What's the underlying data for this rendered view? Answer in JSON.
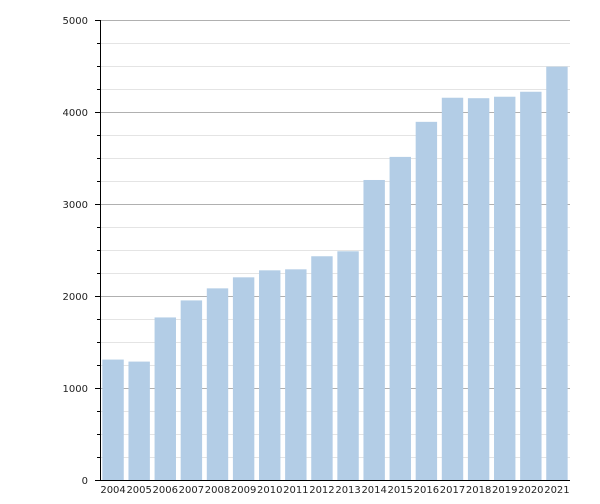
{
  "chart_data": {
    "type": "bar",
    "categories": [
      "2004",
      "2005",
      "2006",
      "2007",
      "2008",
      "2009",
      "2010",
      "2011",
      "2012",
      "2013",
      "2014",
      "2015",
      "2016",
      "2017",
      "2018",
      "2019",
      "2020",
      "2021"
    ],
    "values": [
      1309,
      1287,
      1767,
      1952,
      2083,
      2203,
      2279,
      2290,
      2432,
      2486,
      3261,
      3512,
      3893,
      4155,
      4150,
      4166,
      4220,
      4493
    ],
    "title": "",
    "xlabel": "",
    "ylabel": "",
    "ylim": [
      0,
      5000
    ],
    "yticks": [
      0,
      1000,
      2000,
      3000,
      4000,
      5000
    ],
    "minor_step": 250,
    "grid": true,
    "legend": "none",
    "colors": {
      "bar": "#b3cde6",
      "major_grid": "#b0b0b0",
      "minor_grid": "#e4e4e4",
      "axis": "#000000"
    }
  }
}
